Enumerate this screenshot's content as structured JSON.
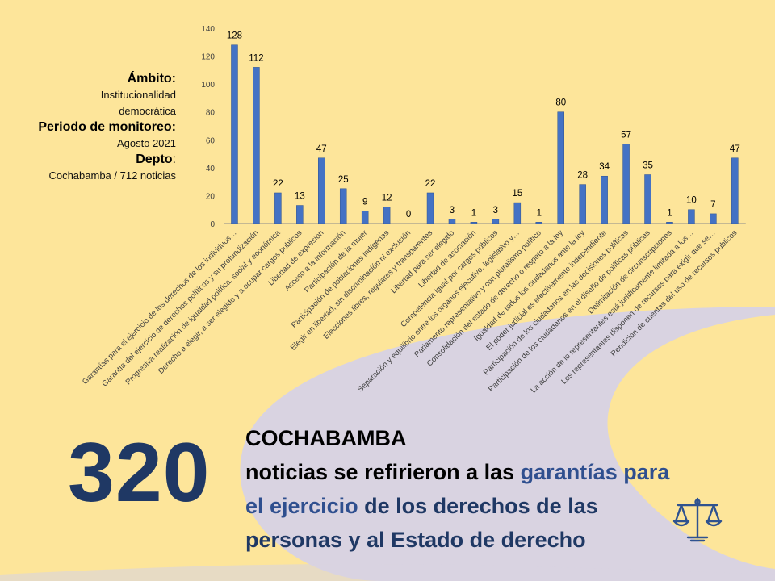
{
  "sidebar": {
    "ambito_label": "Ámbito:",
    "ambito_value": "Institucionalidad democrática",
    "periodo_label": "Periodo de monitoreo:",
    "periodo_value": "Agosto 2021",
    "depto_label": "Depto",
    "depto_colon": ":",
    "depto_value": "Cochabamba / 712 noticias"
  },
  "summary": {
    "big_number": "320",
    "city": "COCHABAMBA",
    "line1_a": "noticias se refirieron a las ",
    "line1_b": "garantías para",
    "line2_a": "el ",
    "line2_b": "ejercicio ",
    "line2_c": "de los derechos de las",
    "line3": "personas y al Estado de derecho"
  },
  "icon": "scales-of-justice-icon",
  "colors": {
    "background": "#FDE59A",
    "bar": "#4472C4",
    "bar_edge": "#2F528F",
    "accent": "#1F3864",
    "swoosh": "#D9D3E1"
  },
  "chart_data": {
    "type": "bar",
    "categories": [
      "Garantías para el ejercicio de los derechos de los individuos…",
      "Garantía del ejercicio de derechos políticos y su profundización",
      "Progresiva realización de igualdad política, social y económica",
      "Derecho a elegir, a ser elegido y a ocupar cargos públicos",
      "Libertad de expresión",
      "Acceso a la información",
      "Participación de la mujer",
      "Participación de poblaciones indígenas",
      "Elegir en libertad, sin discriminación ni exclusión",
      "Elecciones libres, regulares y transparentes",
      "Libertad para ser elegido",
      "Libertad de asociación",
      "Competencia igual por cargos públicos",
      "Separación y equilibrio entre los órganos ejecutivo, legislativo y…",
      "Parlamento representativo y con pluralismo político",
      "Consolidación del estado de derecho o respeto a la ley",
      "Igualdad de todos los ciudadanos ante la ley",
      "El poder judicial es efectivamente independiente",
      "Participación de los ciudadanos en las decisiones políticas",
      "Participación de los ciudadanos en el diseño de políticas públicas",
      "Delimitación de circunscripciones",
      "La acción de lo representantes está jurídicamente limitada a los…",
      "Los representantes disponen de recursos para exigir que se…",
      "Rendición de cuentas del uso de recursos públicos"
    ],
    "values": [
      128,
      112,
      22,
      13,
      47,
      25,
      9,
      12,
      0,
      22,
      3,
      1,
      3,
      15,
      1,
      80,
      28,
      34,
      57,
      35,
      1,
      10,
      7,
      47
    ],
    "ylim": [
      0,
      140
    ],
    "yticks": [
      0,
      20,
      40,
      60,
      80,
      100,
      120,
      140
    ],
    "grid": false,
    "legend": false
  }
}
